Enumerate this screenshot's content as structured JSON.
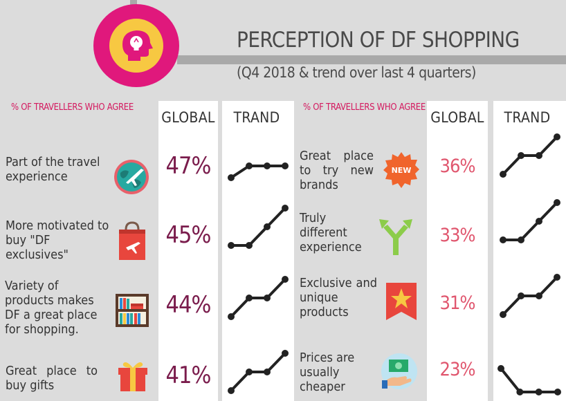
{
  "header": {
    "title": "PERCEPTION OF DF SHOPPING",
    "subtitle": "(Q4 2018 & trend over last 4 quarters)"
  },
  "columns": {
    "agree_label": "% OF TRAVELLERS WHO AGREE",
    "global_label": "GLOBAL",
    "trend_label": "TRAND"
  },
  "colors": {
    "left_pct": "#7a1c4c",
    "right_pct": "#e0566e",
    "accent": "#e0187c",
    "trend_line": "#222222"
  },
  "chart_data": {
    "type": "table",
    "title": "PERCEPTION OF DF SHOPPING",
    "subtitle": "(Q4 2018 & trend over last 4 quarters)",
    "rows": [
      {
        "statement": "Part of the travel experience",
        "global": "47%",
        "icon": "globe-plane-icon",
        "trend": [
          0,
          2,
          2,
          2
        ]
      },
      {
        "statement": "More motivated to buy \"DF exclusives\"",
        "global": "45%",
        "icon": "shopping-bag-plane-icon",
        "trend": [
          0,
          0,
          2,
          4
        ]
      },
      {
        "statement": "Variety of products makes DF a great place for shopping.",
        "global": "44%",
        "icon": "bookshelf-icon",
        "trend": [
          0,
          2,
          2,
          4
        ]
      },
      {
        "statement": "Great place to buy gifts",
        "global": "41%",
        "icon": "gift-box-icon",
        "trend": [
          0,
          2,
          2,
          4
        ]
      },
      {
        "statement": "Great place to try new brands",
        "global": "36%",
        "icon": "new-badge-icon",
        "trend": [
          0,
          2,
          2,
          4
        ]
      },
      {
        "statement": "Truly different experience",
        "global": "33%",
        "icon": "split-arrow-icon",
        "trend": [
          0,
          0,
          2,
          4
        ]
      },
      {
        "statement": "Exclusive and unique products",
        "global": "31%",
        "icon": "star-ribbon-icon",
        "trend": [
          0,
          2,
          2,
          4
        ]
      },
      {
        "statement": "Prices are usually cheaper",
        "global": "23%",
        "icon": "money-hand-icon",
        "trend": [
          4,
          0,
          0,
          0
        ]
      }
    ]
  },
  "left_rows": [
    {
      "label": "Part of the travel experience",
      "pct": "47%"
    },
    {
      "label": "More motivated to buy \"DF exclusives\"",
      "pct": "45%"
    },
    {
      "label": "Variety of products makes DF a great place for shopping.",
      "pct": "44%"
    },
    {
      "label": "Great place to buy gifts",
      "pct": "41%"
    }
  ],
  "right_rows": [
    {
      "label": "Great place to try new brands",
      "pct": "36%"
    },
    {
      "label": "Truly different experience",
      "pct": "33%"
    },
    {
      "label": "Exclusive and unique products",
      "pct": "31%"
    },
    {
      "label": "Prices are usually cheaper",
      "pct": "23%"
    }
  ]
}
